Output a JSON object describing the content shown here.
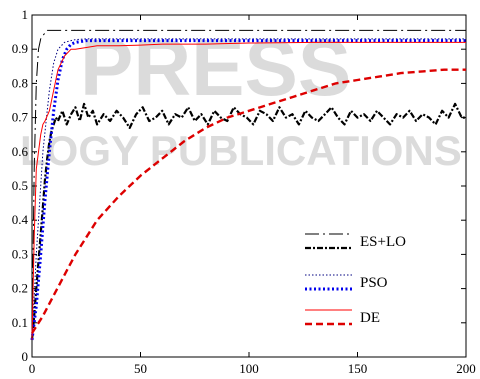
{
  "watermark": {
    "line1": "PRESS",
    "line2": "LOGY PUBLICATIONS",
    "color": "#dcdcdc"
  },
  "chart_data": {
    "type": "line",
    "xlabel": "",
    "ylabel": "",
    "xlim": [
      0,
      200
    ],
    "ylim": [
      0,
      1
    ],
    "xticks": [
      0,
      50,
      100,
      150,
      200
    ],
    "yticks": [
      0,
      0.1,
      0.2,
      0.3,
      0.4,
      0.5,
      0.6,
      0.7,
      0.8,
      0.9,
      1
    ],
    "x_tick_labels": [
      "0",
      "50",
      "100",
      "150",
      "200"
    ],
    "y_tick_labels": [
      "0",
      "0.1",
      "0.2",
      "0.3",
      "0.4",
      "0.5",
      "0.6",
      "0.7",
      "0.8",
      "0.9",
      "1"
    ],
    "grid": false,
    "legend_position": "center-right",
    "series": [
      {
        "name": "ES+LO",
        "pair": "max",
        "color": "#000000",
        "style": "dashdot-thin",
        "x": [
          0,
          1,
          2,
          3,
          4,
          5,
          7,
          10,
          200
        ],
        "y": [
          0.05,
          0.55,
          0.8,
          0.9,
          0.93,
          0.94,
          0.955,
          0.955,
          0.955
        ]
      },
      {
        "name": "ES+LO",
        "pair": "avg",
        "color": "#000000",
        "style": "dashdot-thick",
        "x": [
          0,
          1,
          2,
          3,
          4,
          5,
          6,
          7,
          8,
          9,
          10,
          11,
          12,
          14,
          16,
          18,
          20,
          22,
          24,
          26,
          28,
          30,
          33,
          36,
          39,
          42,
          45,
          48,
          51,
          54,
          57,
          60,
          63,
          66,
          69,
          72,
          75,
          78,
          81,
          84,
          87,
          90,
          93,
          96,
          99,
          102,
          105,
          108,
          111,
          114,
          117,
          120,
          123,
          126,
          129,
          132,
          135,
          138,
          141,
          144,
          147,
          150,
          153,
          156,
          159,
          162,
          165,
          168,
          171,
          174,
          177,
          180,
          183,
          186,
          189,
          192,
          195,
          198,
          200
        ],
        "y": [
          0.05,
          0.12,
          0.2,
          0.28,
          0.36,
          0.44,
          0.52,
          0.58,
          0.63,
          0.66,
          0.68,
          0.7,
          0.69,
          0.72,
          0.68,
          0.71,
          0.73,
          0.69,
          0.74,
          0.7,
          0.72,
          0.68,
          0.71,
          0.69,
          0.72,
          0.7,
          0.67,
          0.71,
          0.73,
          0.69,
          0.7,
          0.72,
          0.68,
          0.71,
          0.7,
          0.73,
          0.69,
          0.71,
          0.68,
          0.72,
          0.7,
          0.69,
          0.73,
          0.71,
          0.7,
          0.68,
          0.72,
          0.71,
          0.69,
          0.73,
          0.7,
          0.71,
          0.68,
          0.72,
          0.7,
          0.69,
          0.71,
          0.73,
          0.7,
          0.68,
          0.72,
          0.7,
          0.71,
          0.69,
          0.72,
          0.7,
          0.68,
          0.71,
          0.7,
          0.72,
          0.69,
          0.71,
          0.7,
          0.68,
          0.72,
          0.7,
          0.74,
          0.7,
          0.7
        ]
      },
      {
        "name": "PSO",
        "pair": "max",
        "color": "#000080",
        "style": "dotted-thin",
        "x": [
          0,
          2,
          5,
          8,
          10,
          12,
          15,
          18,
          20,
          25,
          30,
          40,
          60,
          100,
          200
        ],
        "y": [
          0.05,
          0.3,
          0.6,
          0.78,
          0.86,
          0.9,
          0.92,
          0.925,
          0.928,
          0.93,
          0.93,
          0.93,
          0.93,
          0.93,
          0.93
        ]
      },
      {
        "name": "PSO",
        "pair": "avg",
        "color": "#0000ee",
        "style": "dotted-thick",
        "x": [
          0,
          2,
          4,
          6,
          8,
          10,
          12,
          14,
          16,
          18,
          20,
          25,
          30,
          40,
          60,
          100,
          200
        ],
        "y": [
          0.05,
          0.15,
          0.3,
          0.46,
          0.6,
          0.72,
          0.81,
          0.87,
          0.9,
          0.915,
          0.92,
          0.925,
          0.925,
          0.925,
          0.925,
          0.925,
          0.925
        ]
      },
      {
        "name": "DE",
        "pair": "max",
        "color": "#ff0000",
        "style": "solid-thin",
        "x": [
          0,
          1,
          2,
          3,
          4,
          5,
          6,
          8,
          10,
          12,
          15,
          18,
          20,
          25,
          30,
          40,
          50,
          60,
          80,
          100,
          130,
          160,
          200
        ],
        "y": [
          0.05,
          0.35,
          0.55,
          0.6,
          0.65,
          0.68,
          0.69,
          0.72,
          0.78,
          0.84,
          0.88,
          0.9,
          0.9,
          0.905,
          0.91,
          0.91,
          0.912,
          0.915,
          0.915,
          0.918,
          0.92,
          0.92,
          0.92
        ]
      },
      {
        "name": "DE",
        "pair": "avg",
        "color": "#dd0000",
        "style": "dashed-thick",
        "x": [
          0,
          5,
          10,
          15,
          20,
          25,
          30,
          40,
          50,
          60,
          70,
          80,
          90,
          100,
          110,
          120,
          130,
          140,
          150,
          160,
          170,
          180,
          190,
          200
        ],
        "y": [
          0.07,
          0.12,
          0.18,
          0.24,
          0.3,
          0.35,
          0.4,
          0.47,
          0.53,
          0.58,
          0.63,
          0.67,
          0.7,
          0.72,
          0.74,
          0.76,
          0.78,
          0.8,
          0.81,
          0.82,
          0.83,
          0.835,
          0.84,
          0.84
        ]
      }
    ],
    "legend": [
      {
        "label": "ES+LO"
      },
      {
        "label": "PSO"
      },
      {
        "label": "DE"
      }
    ]
  }
}
